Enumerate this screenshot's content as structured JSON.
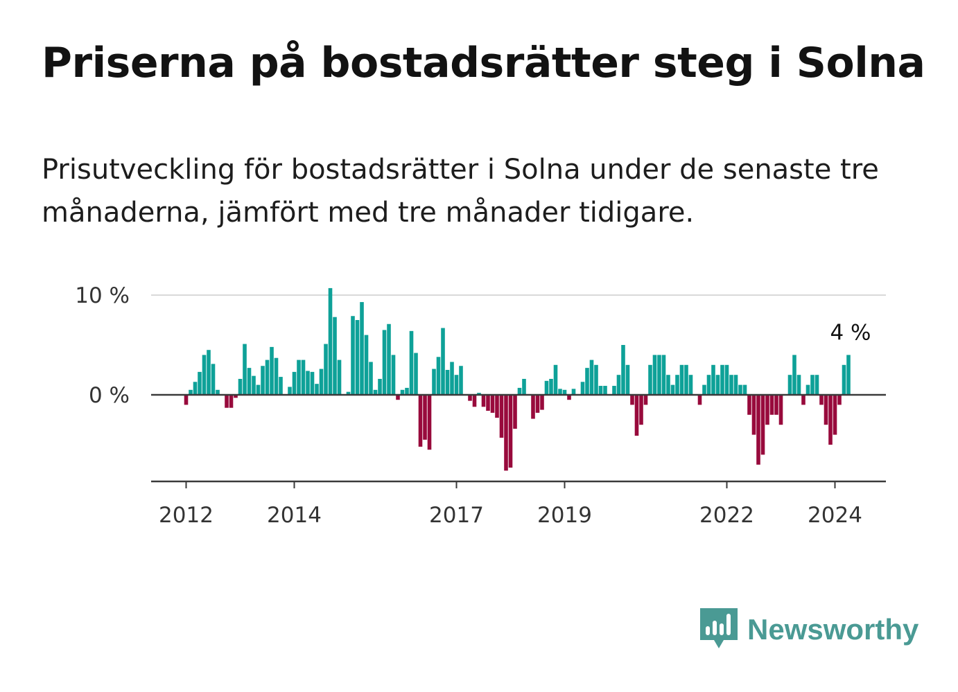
{
  "title": "Priserna på bostadsrätter steg i Solna",
  "subtitle": "Prisutveckling för bostadsrätter i Solna under de senaste tre månaderna, jämfört med tre månader tidigare.",
  "brand": {
    "name": "Newsworthy",
    "icon": "bar-chart-speech-bubble-icon",
    "color": "#4a9a94"
  },
  "colors": {
    "positive": "#0ea198",
    "negative": "#980a3c",
    "zero_line": "#3a3a3a",
    "grid": "#d9d9d9"
  },
  "chart_data": {
    "type": "bar",
    "title": "Priserna på bostadsrätter steg i Solna",
    "xlabel": "",
    "ylabel": "",
    "unit": "%",
    "ylim": [
      -8.5,
      10
    ],
    "y_ticks": [
      {
        "value": 0,
        "label": "0 %"
      },
      {
        "value": 10,
        "label": "10 %"
      }
    ],
    "x_ticks": [
      {
        "month_index": 0,
        "label": "2012"
      },
      {
        "month_index": 24,
        "label": "2014"
      },
      {
        "month_index": 60,
        "label": "2017"
      },
      {
        "month_index": 84,
        "label": "2019"
      },
      {
        "month_index": 120,
        "label": "2022"
      },
      {
        "month_index": 144,
        "label": "2024"
      }
    ],
    "start": "2012-01",
    "values": [
      -1.0,
      0.5,
      1.3,
      2.3,
      4.0,
      4.5,
      3.1,
      0.5,
      0.0,
      -1.3,
      -1.3,
      -0.3,
      1.6,
      5.1,
      2.7,
      1.9,
      1.0,
      2.9,
      3.5,
      4.8,
      3.7,
      1.8,
      0.0,
      0.8,
      2.3,
      3.5,
      3.5,
      2.4,
      2.3,
      1.1,
      2.6,
      5.1,
      10.7,
      7.8,
      3.5,
      0.0,
      0.3,
      7.9,
      7.5,
      9.3,
      6.0,
      3.3,
      0.5,
      1.6,
      6.5,
      7.1,
      4.0,
      -0.5,
      0.5,
      0.7,
      6.4,
      4.2,
      -5.2,
      -4.5,
      -5.5,
      2.6,
      3.8,
      6.7,
      2.5,
      3.3,
      2.0,
      2.9,
      0.0,
      -0.6,
      -1.2,
      0.2,
      -1.2,
      -1.6,
      -1.8,
      -2.3,
      -4.3,
      -7.6,
      -7.3,
      -3.4,
      0.7,
      1.6,
      0.0,
      -2.4,
      -1.8,
      -1.5,
      1.4,
      1.6,
      3.0,
      0.6,
      0.5,
      -0.5,
      0.6,
      0.0,
      1.3,
      2.7,
      3.5,
      3.0,
      0.9,
      0.9,
      0.0,
      0.9,
      2.0,
      5.0,
      3.0,
      -1.0,
      -4.1,
      -3.0,
      -1.0,
      3.0,
      4.0,
      4.0,
      4.0,
      2.0,
      1.0,
      2.0,
      3.0,
      3.0,
      2.0,
      0.0,
      -1.0,
      1.0,
      2.0,
      3.0,
      2.0,
      3.0,
      3.0,
      2.0,
      2.0,
      1.0,
      1.0,
      -2.0,
      -4.0,
      -7.0,
      -6.0,
      -3.0,
      -2.0,
      -2.0,
      -3.0,
      0.0,
      2.0,
      4.0,
      2.0,
      -1.0,
      1.0,
      2.0,
      2.0,
      -1.0,
      -3.0,
      -5.0,
      -4.0,
      -1.0,
      3.0,
      4.0
    ],
    "annotation": {
      "month_index": 147,
      "label": "4 %"
    }
  }
}
